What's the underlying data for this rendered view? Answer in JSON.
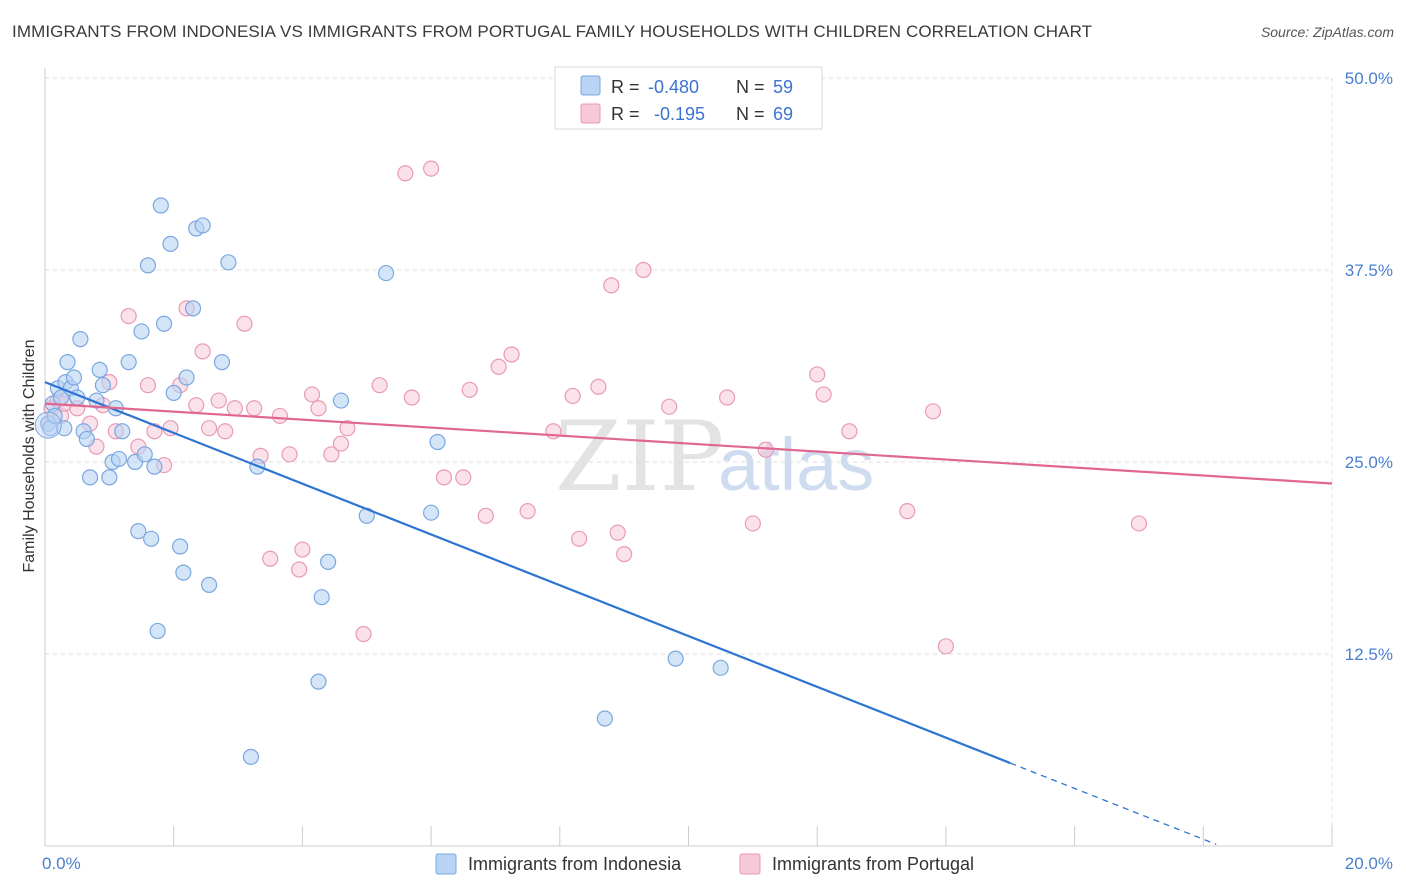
{
  "header": {
    "title": "IMMIGRANTS FROM INDONESIA VS IMMIGRANTS FROM PORTUGAL FAMILY HOUSEHOLDS WITH CHILDREN CORRELATION CHART",
    "source": "Source: ZipAtlas.com"
  },
  "watermark": {
    "part1": "ZIP",
    "part2": "atlas"
  },
  "stats_legend": {
    "rows": [
      {
        "r_label": "R =",
        "r_value": "-0.480",
        "n_label": "N =",
        "n_value": "59"
      },
      {
        "r_label": "R =",
        "r_value": "-0.195",
        "n_label": "N =",
        "n_value": "69"
      }
    ]
  },
  "colors": {
    "indonesia_fill": "#b9d3f3",
    "indonesia_stroke": "#7aa7e0",
    "indonesia_line": "#2e74d1",
    "portugal_fill": "#f7c8d8",
    "portugal_stroke": "#e99ab5",
    "portugal_line": "#e06890",
    "tick": "#4a7fd0",
    "grid": "#dddddd"
  },
  "chart_data": {
    "type": "scatter",
    "title": "IMMIGRANTS FROM INDONESIA VS IMMIGRANTS FROM PORTUGAL FAMILY HOUSEHOLDS WITH CHILDREN CORRELATION CHART",
    "xlabel": "",
    "ylabel": "Family Households with Children",
    "xlim": [
      0,
      20
    ],
    "ylim": [
      0,
      50
    ],
    "x_tick_labels": [
      "0.0%",
      "20.0%"
    ],
    "y_ticks": [
      12.5,
      25.0,
      37.5,
      50.0
    ],
    "y_tick_labels": [
      "12.5%",
      "25.0%",
      "37.5%",
      "50.0%"
    ],
    "legend": [
      "Immigrants from Indonesia",
      "Immigrants from Portugal"
    ],
    "series": [
      {
        "name": "Immigrants from Indonesia",
        "R": -0.48,
        "N": 59,
        "trend": {
          "x0": 0.0,
          "y0": 30.2,
          "x1": 15.0,
          "y1": 5.4,
          "dash_to_x": 18.2
        },
        "points": [
          [
            0.05,
            27.5
          ],
          [
            0.08,
            27.2
          ],
          [
            0.12,
            28.8
          ],
          [
            0.15,
            28.0
          ],
          [
            0.2,
            29.8
          ],
          [
            0.25,
            29.2
          ],
          [
            0.3,
            27.2
          ],
          [
            0.32,
            30.2
          ],
          [
            0.35,
            31.5
          ],
          [
            0.4,
            29.8
          ],
          [
            0.45,
            30.5
          ],
          [
            0.5,
            29.2
          ],
          [
            0.55,
            33.0
          ],
          [
            0.6,
            27.0
          ],
          [
            0.65,
            26.5
          ],
          [
            0.7,
            24.0
          ],
          [
            0.8,
            29.0
          ],
          [
            0.85,
            31.0
          ],
          [
            0.9,
            30.0
          ],
          [
            1.0,
            24.0
          ],
          [
            1.05,
            25.0
          ],
          [
            1.1,
            28.5
          ],
          [
            1.15,
            25.2
          ],
          [
            1.2,
            27.0
          ],
          [
            1.3,
            31.5
          ],
          [
            1.4,
            25.0
          ],
          [
            1.5,
            33.5
          ],
          [
            1.55,
            25.5
          ],
          [
            1.6,
            37.8
          ],
          [
            1.65,
            20.0
          ],
          [
            1.7,
            24.7
          ],
          [
            1.75,
            14.0
          ],
          [
            1.8,
            41.7
          ],
          [
            1.85,
            34.0
          ],
          [
            1.95,
            39.2
          ],
          [
            2.0,
            29.5
          ],
          [
            2.1,
            19.5
          ],
          [
            2.15,
            17.8
          ],
          [
            2.2,
            30.5
          ],
          [
            2.3,
            35.0
          ],
          [
            2.35,
            40.2
          ],
          [
            2.45,
            40.4
          ],
          [
            2.55,
            17.0
          ],
          [
            2.75,
            31.5
          ],
          [
            2.85,
            38.0
          ],
          [
            3.2,
            5.8
          ],
          [
            3.3,
            24.7
          ],
          [
            4.25,
            10.7
          ],
          [
            4.3,
            16.2
          ],
          [
            4.4,
            18.5
          ],
          [
            4.6,
            29.0
          ],
          [
            5.0,
            21.5
          ],
          [
            5.3,
            37.3
          ],
          [
            6.0,
            21.7
          ],
          [
            6.1,
            26.3
          ],
          [
            8.7,
            8.3
          ],
          [
            9.8,
            12.2
          ],
          [
            10.5,
            11.6
          ],
          [
            1.45,
            20.5
          ]
        ]
      },
      {
        "name": "Immigrants from Portugal",
        "R": -0.195,
        "N": 69,
        "trend": {
          "x0": 0.0,
          "y0": 28.8,
          "x1": 20.0,
          "y1": 23.6
        },
        "points": [
          [
            0.05,
            27.5
          ],
          [
            0.1,
            28.5
          ],
          [
            0.2,
            29.0
          ],
          [
            0.25,
            28.0
          ],
          [
            0.3,
            28.8
          ],
          [
            0.5,
            28.5
          ],
          [
            0.7,
            27.5
          ],
          [
            0.8,
            26.0
          ],
          [
            0.9,
            28.7
          ],
          [
            1.0,
            30.2
          ],
          [
            1.1,
            27.0
          ],
          [
            1.3,
            34.5
          ],
          [
            1.45,
            26.0
          ],
          [
            1.6,
            30.0
          ],
          [
            1.7,
            27.0
          ],
          [
            1.85,
            24.8
          ],
          [
            1.95,
            27.2
          ],
          [
            2.1,
            30.0
          ],
          [
            2.2,
            35.0
          ],
          [
            2.35,
            28.7
          ],
          [
            2.45,
            32.2
          ],
          [
            2.55,
            27.2
          ],
          [
            2.7,
            29.0
          ],
          [
            2.8,
            27.0
          ],
          [
            2.95,
            28.5
          ],
          [
            3.1,
            34.0
          ],
          [
            3.25,
            28.5
          ],
          [
            3.35,
            25.4
          ],
          [
            3.5,
            18.7
          ],
          [
            3.65,
            28.0
          ],
          [
            3.8,
            25.5
          ],
          [
            3.95,
            18.0
          ],
          [
            4.0,
            19.3
          ],
          [
            4.15,
            29.4
          ],
          [
            4.25,
            28.5
          ],
          [
            4.45,
            25.5
          ],
          [
            4.6,
            26.2
          ],
          [
            4.7,
            27.2
          ],
          [
            4.95,
            13.8
          ],
          [
            5.2,
            30.0
          ],
          [
            5.6,
            43.8
          ],
          [
            5.7,
            29.2
          ],
          [
            6.0,
            44.1
          ],
          [
            6.2,
            24.0
          ],
          [
            6.5,
            24.0
          ],
          [
            6.6,
            29.7
          ],
          [
            6.85,
            21.5
          ],
          [
            7.05,
            31.2
          ],
          [
            7.25,
            32.0
          ],
          [
            7.5,
            21.8
          ],
          [
            7.9,
            27.0
          ],
          [
            8.2,
            29.3
          ],
          [
            8.3,
            20.0
          ],
          [
            8.6,
            29.9
          ],
          [
            8.8,
            36.5
          ],
          [
            8.9,
            20.4
          ],
          [
            9.0,
            19.0
          ],
          [
            9.3,
            37.5
          ],
          [
            9.7,
            28.6
          ],
          [
            10.6,
            29.2
          ],
          [
            11.0,
            21.0
          ],
          [
            11.2,
            25.8
          ],
          [
            12.0,
            30.7
          ],
          [
            12.1,
            29.4
          ],
          [
            12.5,
            27.0
          ],
          [
            13.4,
            21.8
          ],
          [
            13.8,
            28.3
          ],
          [
            14.0,
            13.0
          ],
          [
            17.0,
            21.0
          ]
        ]
      }
    ]
  }
}
